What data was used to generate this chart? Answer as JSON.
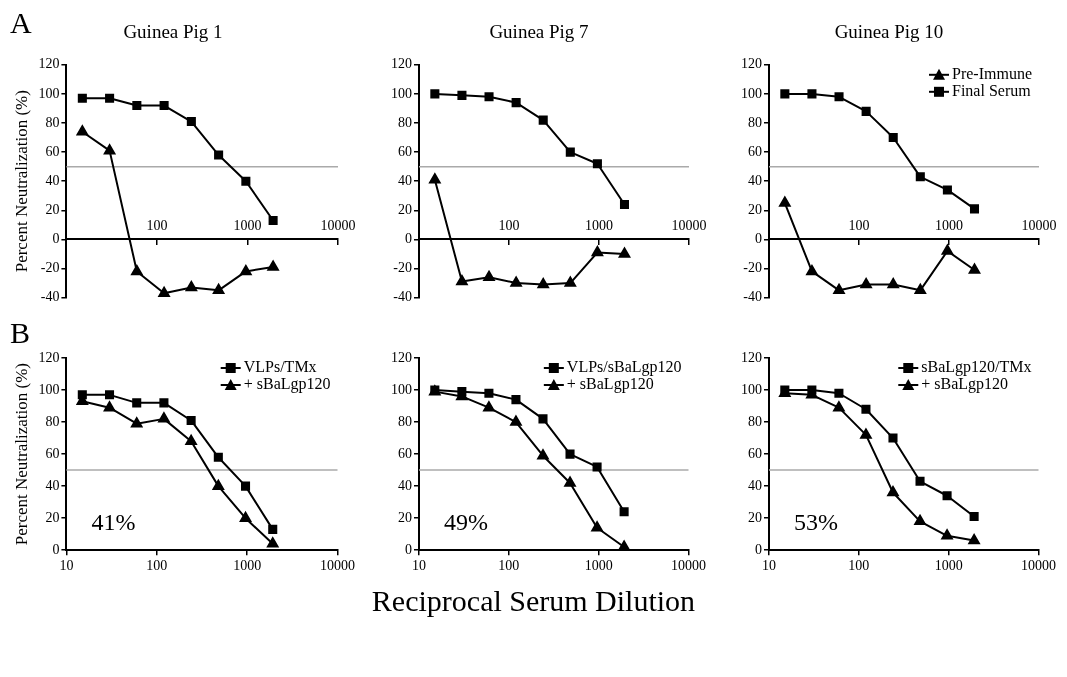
{
  "chart_data": [
    {
      "type": "line",
      "title": "Guinea Pig 1",
      "ylabel": "Percent Neutralization (%)",
      "annotations": [
        "A"
      ],
      "x": [
        15,
        30,
        60,
        120,
        240,
        480,
        960,
        1920
      ],
      "log": "x",
      "xlim": [
        10,
        10000
      ],
      "xticks": [
        100,
        1000,
        10000
      ],
      "ylim": [
        -40,
        120
      ],
      "yticks": [
        -40,
        -20,
        0,
        20,
        40,
        60,
        80,
        100,
        120
      ],
      "grid": false,
      "legend": false,
      "ref_lines": [
        {
          "axis": "y",
          "value": 50,
          "color": "#aaaaaa"
        }
      ],
      "series": [
        {
          "color": "#000000",
          "marker": "triangle",
          "values": [
            74,
            61,
            -22,
            -37,
            -33,
            -35,
            -22,
            -19
          ]
        },
        {
          "color": "#000000",
          "marker": "square",
          "values": [
            97,
            97,
            92,
            92,
            81,
            58,
            40,
            13
          ]
        }
      ]
    },
    {
      "type": "line",
      "title": "Guinea Pig 7",
      "x": [
        15,
        30,
        60,
        120,
        240,
        480,
        960,
        1920
      ],
      "log": "x",
      "xlim": [
        10,
        10000
      ],
      "xticks": [
        100,
        1000,
        10000
      ],
      "ylim": [
        -40,
        120
      ],
      "yticks": [
        -40,
        -20,
        0,
        20,
        40,
        60,
        80,
        100,
        120
      ],
      "grid": false,
      "legend": false,
      "ref_lines": [
        {
          "axis": "y",
          "value": 50,
          "color": "#aaaaaa"
        }
      ],
      "series": [
        {
          "color": "#000000",
          "marker": "triangle",
          "values": [
            41,
            -29,
            -26,
            -30,
            -31,
            -30,
            -9,
            -10
          ]
        },
        {
          "color": "#000000",
          "marker": "square",
          "values": [
            100,
            99,
            98,
            94,
            82,
            60,
            52,
            24
          ]
        }
      ]
    },
    {
      "type": "line",
      "title": "Guinea Pig 10",
      "x": [
        15,
        30,
        60,
        120,
        240,
        480,
        960,
        1920
      ],
      "log": "x",
      "xlim": [
        10,
        10000
      ],
      "xticks": [
        100,
        1000,
        10000
      ],
      "ylim": [
        -40,
        120
      ],
      "yticks": [
        -40,
        -20,
        0,
        20,
        40,
        60,
        80,
        100,
        120
      ],
      "grid": false,
      "legend": "top right",
      "ref_lines": [
        {
          "axis": "y",
          "value": 50,
          "color": "#aaaaaa"
        }
      ],
      "series": [
        {
          "name": "Pre-Immune",
          "color": "#000000",
          "marker": "triangle",
          "values": [
            25,
            -22,
            -35,
            -31,
            -31,
            -35,
            -8,
            -21
          ]
        },
        {
          "name": "Final Serum",
          "color": "#000000",
          "marker": "square",
          "values": [
            100,
            100,
            98,
            88,
            70,
            43,
            34,
            21
          ]
        }
      ]
    },
    {
      "type": "line",
      "ylabel": "Percent Neutralization (%)",
      "annotations": [
        "B",
        "41%"
      ],
      "x": [
        15,
        30,
        60,
        120,
        240,
        480,
        960,
        1920
      ],
      "log": "x",
      "xlim": [
        10,
        10000
      ],
      "xticks": [
        10,
        100,
        1000,
        10000
      ],
      "ylim": [
        0,
        120
      ],
      "yticks": [
        0,
        20,
        40,
        60,
        80,
        100,
        120
      ],
      "grid": false,
      "legend": "top right",
      "ref_lines": [
        {
          "axis": "y",
          "value": 50,
          "color": "#aaaaaa"
        }
      ],
      "series": [
        {
          "name": "VLPs/TMx",
          "color": "#000000",
          "marker": "square",
          "values": [
            97,
            97,
            92,
            92,
            81,
            58,
            40,
            13
          ]
        },
        {
          "name": "+ sBaLgp120",
          "color": "#000000",
          "marker": "triangle",
          "values": [
            93,
            89,
            79,
            82,
            68,
            40,
            20,
            4
          ]
        }
      ]
    },
    {
      "type": "line",
      "xlabel": "Reciprocal Serum Dilution",
      "annotations": [
        "49%"
      ],
      "x": [
        15,
        30,
        60,
        120,
        240,
        480,
        960,
        1920
      ],
      "log": "x",
      "xlim": [
        10,
        10000
      ],
      "xticks": [
        10,
        100,
        1000,
        10000
      ],
      "ylim": [
        0,
        120
      ],
      "yticks": [
        0,
        20,
        40,
        60,
        80,
        100,
        120
      ],
      "grid": false,
      "legend": "top right",
      "ref_lines": [
        {
          "axis": "y",
          "value": 50,
          "color": "#aaaaaa"
        }
      ],
      "series": [
        {
          "name": "VLPs/sBaLgp120",
          "color": "#000000",
          "marker": "square",
          "values": [
            100,
            99,
            98,
            94,
            82,
            60,
            52,
            24
          ]
        },
        {
          "name": "+ sBaLgp120",
          "color": "#000000",
          "marker": "triangle",
          "values": [
            99,
            96,
            89,
            80,
            59,
            42,
            14,
            2
          ]
        }
      ]
    },
    {
      "type": "line",
      "annotations": [
        "53%"
      ],
      "x": [
        15,
        30,
        60,
        120,
        240,
        480,
        960,
        1920
      ],
      "log": "x",
      "xlim": [
        10,
        10000
      ],
      "xticks": [
        10,
        100,
        1000,
        10000
      ],
      "ylim": [
        0,
        120
      ],
      "yticks": [
        0,
        20,
        40,
        60,
        80,
        100,
        120
      ],
      "grid": false,
      "legend": "top right",
      "ref_lines": [
        {
          "axis": "y",
          "value": 50,
          "color": "#aaaaaa"
        }
      ],
      "series": [
        {
          "name": "sBaLgp120/TMx",
          "color": "#000000",
          "marker": "square",
          "values": [
            100,
            100,
            98,
            88,
            70,
            43,
            34,
            21
          ]
        },
        {
          "name": "+ sBaLgp120",
          "color": "#000000",
          "marker": "triangle",
          "values": [
            98,
            97,
            89,
            72,
            36,
            18,
            9,
            6
          ]
        }
      ]
    }
  ]
}
